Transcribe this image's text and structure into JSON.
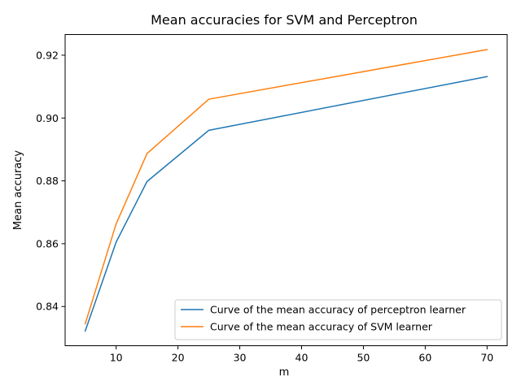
{
  "chart_data": {
    "type": "line",
    "title": "Mean accuracies for SVM and Perceptron",
    "xlabel": "m",
    "ylabel": "Mean accuracy",
    "x": [
      5,
      10,
      15,
      25,
      70
    ],
    "series": [
      {
        "name": "Curve of the mean accuracy of perceptron learner",
        "color": "#1f77b4",
        "values": [
          0.8322,
          0.8605,
          0.8798,
          0.8961,
          0.9132
        ]
      },
      {
        "name": "Curve of the mean accuracy of SVM learner",
        "color": "#ff7f0e",
        "values": [
          0.8345,
          0.8663,
          0.8887,
          0.906,
          0.9218
        ]
      }
    ],
    "xlim": [
      1.75,
      73.25
    ],
    "ylim": [
      0.82752,
      0.92658
    ],
    "xticks": [
      10,
      20,
      30,
      40,
      50,
      60,
      70
    ],
    "xtick_labels": [
      "10",
      "20",
      "30",
      "40",
      "50",
      "60",
      "70"
    ],
    "yticks": [
      0.84,
      0.86,
      0.88,
      0.9,
      0.92
    ],
    "ytick_labels": [
      "0.84",
      "0.86",
      "0.88",
      "0.90",
      "0.92"
    ],
    "grid": false,
    "legend_position": "lower-right"
  }
}
